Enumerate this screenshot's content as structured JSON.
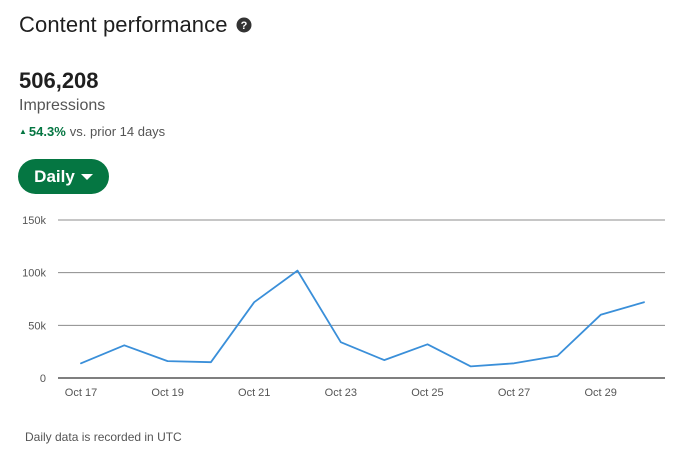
{
  "header": {
    "title": "Content performance",
    "help_icon": "question-circle-icon"
  },
  "metric": {
    "value": "506,208",
    "label": "Impressions",
    "change_pct": "54.3%",
    "change_text": "vs. prior 14 days",
    "change_color": "#057642"
  },
  "dropdown": {
    "label": "Daily",
    "color": "#057642"
  },
  "chart_data": {
    "type": "line",
    "x": [
      "Oct 17",
      "Oct 18",
      "Oct 19",
      "Oct 20",
      "Oct 21",
      "Oct 22",
      "Oct 23",
      "Oct 24",
      "Oct 25",
      "Oct 26",
      "Oct 27",
      "Oct 28",
      "Oct 29",
      "Oct 30"
    ],
    "x_tick_labels": [
      "Oct 17",
      "Oct 19",
      "Oct 21",
      "Oct 23",
      "Oct 25",
      "Oct 27",
      "Oct 29"
    ],
    "y_tick_labels": [
      "0",
      "50k",
      "100k",
      "150k"
    ],
    "y_ticks": [
      0,
      50000,
      100000,
      150000
    ],
    "ylim": [
      0,
      150000
    ],
    "series": [
      {
        "values": [
          14000,
          31000,
          16000,
          15000,
          72000,
          102000,
          34000,
          17000,
          32000,
          11000,
          14000,
          21000,
          60000,
          72000
        ],
        "color": "#3a8fd9"
      }
    ],
    "grid": true
  },
  "footer": {
    "note": "Daily data is recorded in UTC"
  }
}
